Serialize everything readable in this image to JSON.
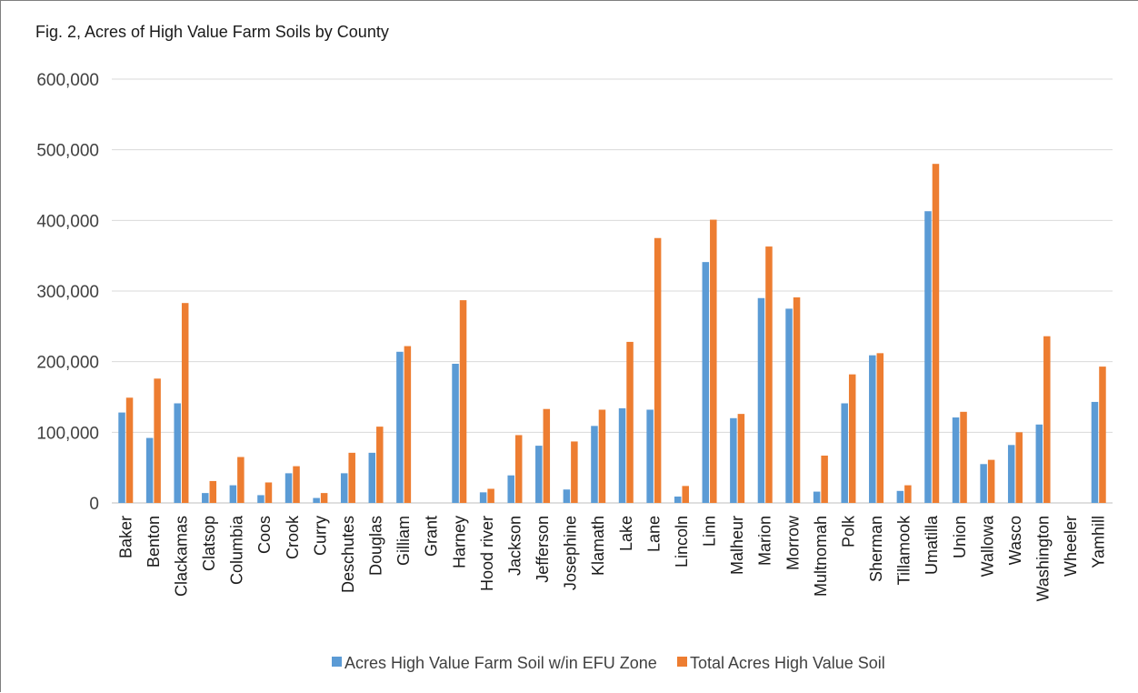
{
  "chart_data": {
    "type": "bar",
    "title": "Fig. 2, Acres of High Value Farm Soils by County",
    "xlabel": "",
    "ylabel": "",
    "ylim": [
      0,
      600000
    ],
    "yticks": [
      0,
      100000,
      200000,
      300000,
      400000,
      500000,
      600000
    ],
    "ytick_labels": [
      "0",
      "100,000",
      "200,000",
      "300,000",
      "400,000",
      "500,000",
      "600,000"
    ],
    "grid": true,
    "legend_position": "bottom",
    "categories": [
      "Baker",
      "Benton",
      "Clackamas",
      "Clatsop",
      "Columbia",
      "Coos",
      "Crook",
      "Curry",
      "Deschutes",
      "Douglas",
      "Gilliam",
      "Grant",
      "Harney",
      "Hood river",
      "Jackson",
      "Jefferson",
      "Josephine",
      "Klamath",
      "Lake",
      "Lane",
      "Lincoln",
      "Linn",
      "Malheur",
      "Marion",
      "Morrow",
      "Multnomah",
      "Polk",
      "Sherman",
      "Tillamook",
      "Umatilla",
      "Union",
      "Wallowa",
      "Wasco",
      "Washington",
      "Wheeler",
      "Yamhill"
    ],
    "series": [
      {
        "name": "Acres High Value Farm Soil w/in EFU Zone",
        "color": "#5b9bd5",
        "values": [
          128000,
          92000,
          141000,
          14000,
          25000,
          11000,
          42000,
          7000,
          42000,
          71000,
          214000,
          0,
          197000,
          15000,
          39000,
          81000,
          19000,
          109000,
          134000,
          132000,
          9000,
          341000,
          120000,
          290000,
          275000,
          16000,
          141000,
          209000,
          17000,
          413000,
          121000,
          55000,
          82000,
          111000,
          0,
          143000
        ]
      },
      {
        "name": "Total Acres High Value Soil",
        "color": "#ed7d31",
        "values": [
          149000,
          176000,
          283000,
          31000,
          65000,
          29000,
          52000,
          14000,
          71000,
          108000,
          222000,
          0,
          287000,
          20000,
          96000,
          133000,
          87000,
          132000,
          228000,
          375000,
          24000,
          401000,
          126000,
          363000,
          291000,
          67000,
          182000,
          212000,
          25000,
          480000,
          129000,
          61000,
          100000,
          236000,
          0,
          193000
        ]
      }
    ]
  }
}
